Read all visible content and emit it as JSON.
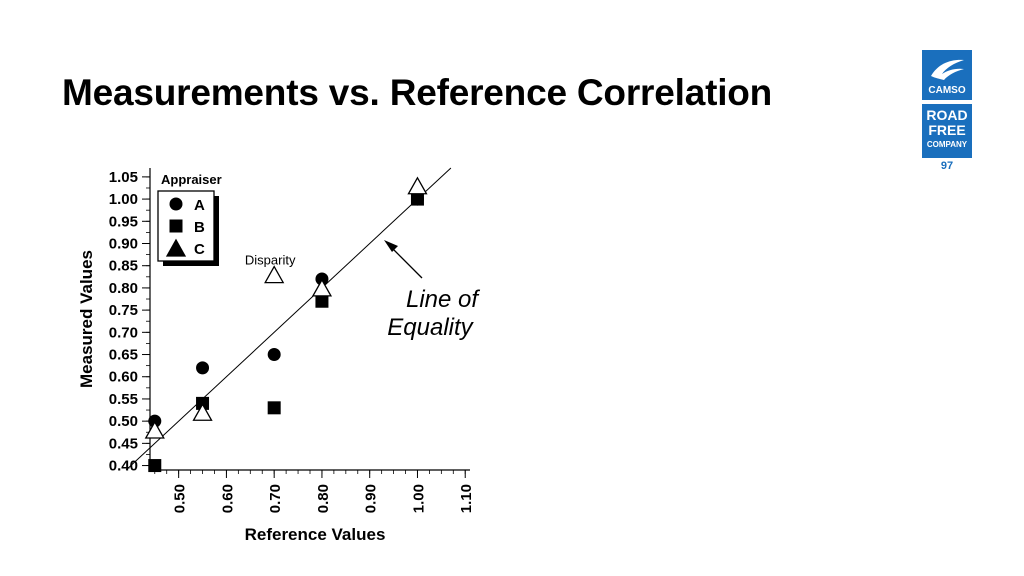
{
  "slide": {
    "title": "Measurements vs. Reference Correlation",
    "page_number": "97",
    "logo": {
      "brand": "CAMSO",
      "tagline_lines": [
        "ROAD",
        "FREE",
        "COMPANY"
      ],
      "icon": "camso-bird-icon",
      "color": "#1a6fbd"
    }
  },
  "chart_data": {
    "type": "scatter",
    "title": "",
    "xlabel": "Reference Values",
    "ylabel": "Measured Values",
    "xlim": [
      0.44,
      1.11
    ],
    "ylim": [
      0.39,
      1.07
    ],
    "x_ticks": [
      "0.50",
      "0.60",
      "0.70",
      "0.80",
      "0.90",
      "1.00",
      "1.10"
    ],
    "y_ticks": [
      "1.05",
      "1.00",
      "0.95",
      "0.90",
      "0.85",
      "0.80",
      "0.75",
      "0.70",
      "0.65",
      "0.60",
      "0.55",
      "0.50",
      "0.45",
      "0.40"
    ],
    "legend": {
      "title": "Appraiser",
      "position": "top-left"
    },
    "series": [
      {
        "name": "A",
        "marker": "circle",
        "points": [
          [
            0.45,
            0.5
          ],
          [
            0.55,
            0.62
          ],
          [
            0.7,
            0.65
          ],
          [
            0.8,
            0.82
          ],
          [
            1.0,
            1.0
          ]
        ]
      },
      {
        "name": "B",
        "marker": "square",
        "points": [
          [
            0.45,
            0.4
          ],
          [
            0.55,
            0.54
          ],
          [
            0.7,
            0.53
          ],
          [
            0.8,
            0.77
          ],
          [
            1.0,
            1.0
          ]
        ]
      },
      {
        "name": "C",
        "marker": "triangle-open",
        "points": [
          [
            0.45,
            0.48
          ],
          [
            0.55,
            0.52
          ],
          [
            0.7,
            0.83
          ],
          [
            0.8,
            0.8
          ],
          [
            1.0,
            1.03
          ]
        ]
      }
    ],
    "equality_line": {
      "label_lines": [
        "Line of",
        "Equality"
      ]
    },
    "annotations": [
      {
        "text": "Disparity",
        "x": 0.7,
        "y": 0.83
      }
    ]
  }
}
